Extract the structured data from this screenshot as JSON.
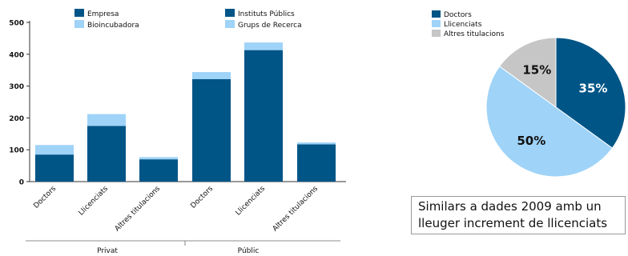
{
  "chart_data": [
    {
      "type": "bar",
      "stacked": true,
      "categories": [
        "Doctors",
        "Llicenciats",
        "Altres titulacions",
        "Doctors",
        "Llicenciats",
        "Altres titulacions"
      ],
      "groups": [
        {
          "label": "Privat",
          "categories": [
            0,
            1,
            2
          ]
        },
        {
          "label": "Públic",
          "categories": [
            3,
            4,
            5
          ]
        }
      ],
      "series": [
        {
          "name": "Empresa",
          "color": "#005587",
          "values": [
            85,
            175,
            70,
            null,
            null,
            null
          ]
        },
        {
          "name": "Bioincubadora",
          "color": "#9fd3f8",
          "values": [
            30,
            37,
            7,
            null,
            null,
            null
          ]
        },
        {
          "name": "Instituts Públics",
          "color": "#005587",
          "values": [
            null,
            null,
            null,
            322,
            413,
            117
          ]
        },
        {
          "name": "Grups de Recerca",
          "color": "#9fd3f8",
          "values": [
            null,
            null,
            null,
            22,
            24,
            6
          ]
        }
      ],
      "ylim": [
        0,
        500
      ],
      "yticks": [
        0,
        100,
        200,
        300,
        400,
        500
      ],
      "grid": false,
      "legend": "top"
    },
    {
      "type": "pie",
      "labels": [
        "Doctors",
        "Llicenciats",
        "Altres titulacions"
      ],
      "values": [
        35,
        50,
        15
      ],
      "value_labels": [
        "35%",
        "50%",
        "15%"
      ],
      "colors": [
        "#005587",
        "#9fd3f8",
        "#c6c6c6"
      ],
      "legend": "top-left"
    }
  ],
  "note": {
    "line1": "Similars a dades 2009 amb un",
    "line2": "lleuger increment de llicenciats"
  }
}
